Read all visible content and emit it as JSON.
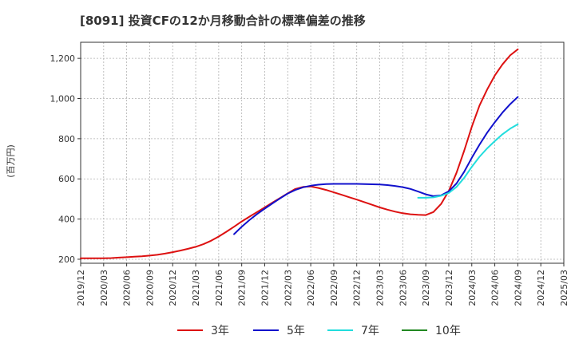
{
  "chart_data": {
    "type": "line",
    "title": "[8091]  投資CFの12か月移動合計の標準偏差の推移",
    "ylabel": "(百万円)",
    "xlabel": "",
    "ylim": [
      180,
      1280
    ],
    "yticks": [
      200,
      400,
      600,
      800,
      1000,
      1200
    ],
    "ytick_labels": [
      "200",
      "400",
      "600",
      "800",
      "1,000",
      "1,200"
    ],
    "xlim": [
      "2019-12",
      "2025-03"
    ],
    "xticks": [
      "2019/12",
      "2020/03",
      "2020/06",
      "2020/09",
      "2020/12",
      "2021/03",
      "2021/06",
      "2021/09",
      "2021/12",
      "2022/03",
      "2022/06",
      "2022/09",
      "2022/12",
      "2023/03",
      "2023/06",
      "2023/09",
      "2023/12",
      "2024/03",
      "2024/06",
      "2024/09",
      "2024/12",
      "2025/03"
    ],
    "grid": true,
    "legend_position": "bottom",
    "series": [
      {
        "name": "3年",
        "color": "#dd1111",
        "points": [
          [
            "2019-12",
            205
          ],
          [
            "2020-01",
            205
          ],
          [
            "2020-02",
            205
          ],
          [
            "2020-03",
            205
          ],
          [
            "2020-04",
            206
          ],
          [
            "2020-05",
            208
          ],
          [
            "2020-06",
            210
          ],
          [
            "2020-07",
            213
          ],
          [
            "2020-08",
            215
          ],
          [
            "2020-09",
            218
          ],
          [
            "2020-10",
            222
          ],
          [
            "2020-11",
            228
          ],
          [
            "2020-12",
            235
          ],
          [
            "2021-01",
            243
          ],
          [
            "2021-02",
            252
          ],
          [
            "2021-03",
            262
          ],
          [
            "2021-04",
            275
          ],
          [
            "2021-05",
            292
          ],
          [
            "2021-06",
            313
          ],
          [
            "2021-07",
            337
          ],
          [
            "2021-08",
            362
          ],
          [
            "2021-09",
            388
          ],
          [
            "2021-10",
            412
          ],
          [
            "2021-11",
            435
          ],
          [
            "2021-12",
            458
          ],
          [
            "2022-01",
            482
          ],
          [
            "2022-02",
            505
          ],
          [
            "2022-03",
            528
          ],
          [
            "2022-04",
            550
          ],
          [
            "2022-05",
            560
          ],
          [
            "2022-06",
            562
          ],
          [
            "2022-07",
            555
          ],
          [
            "2022-08",
            545
          ],
          [
            "2022-09",
            533
          ],
          [
            "2022-10",
            521
          ],
          [
            "2022-11",
            509
          ],
          [
            "2022-12",
            497
          ],
          [
            "2023-01",
            484
          ],
          [
            "2023-02",
            471
          ],
          [
            "2023-03",
            458
          ],
          [
            "2023-04",
            447
          ],
          [
            "2023-05",
            437
          ],
          [
            "2023-06",
            429
          ],
          [
            "2023-07",
            424
          ],
          [
            "2023-08",
            421
          ],
          [
            "2023-09",
            420
          ],
          [
            "2023-10",
            435
          ],
          [
            "2023-11",
            475
          ],
          [
            "2023-12",
            540
          ],
          [
            "2024-01",
            630
          ],
          [
            "2024-02",
            740
          ],
          [
            "2024-03",
            860
          ],
          [
            "2024-04",
            965
          ],
          [
            "2024-05",
            1045
          ],
          [
            "2024-06",
            1115
          ],
          [
            "2024-07",
            1170
          ],
          [
            "2024-08",
            1215
          ],
          [
            "2024-09",
            1245
          ]
        ]
      },
      {
        "name": "5年",
        "color": "#1111cc",
        "points": [
          [
            "2021-08",
            325
          ],
          [
            "2021-09",
            362
          ],
          [
            "2021-10",
            395
          ],
          [
            "2021-11",
            425
          ],
          [
            "2021-12",
            452
          ],
          [
            "2022-01",
            478
          ],
          [
            "2022-02",
            503
          ],
          [
            "2022-03",
            527
          ],
          [
            "2022-04",
            545
          ],
          [
            "2022-05",
            558
          ],
          [
            "2022-06",
            566
          ],
          [
            "2022-07",
            571
          ],
          [
            "2022-08",
            574
          ],
          [
            "2022-09",
            575
          ],
          [
            "2022-10",
            575
          ],
          [
            "2022-11",
            575
          ],
          [
            "2022-12",
            575
          ],
          [
            "2023-01",
            574
          ],
          [
            "2023-02",
            573
          ],
          [
            "2023-03",
            572
          ],
          [
            "2023-04",
            569
          ],
          [
            "2023-05",
            565
          ],
          [
            "2023-06",
            559
          ],
          [
            "2023-07",
            550
          ],
          [
            "2023-08",
            537
          ],
          [
            "2023-09",
            523
          ],
          [
            "2023-10",
            514
          ],
          [
            "2023-11",
            518
          ],
          [
            "2023-12",
            538
          ],
          [
            "2024-01",
            577
          ],
          [
            "2024-02",
            635
          ],
          [
            "2024-03",
            705
          ],
          [
            "2024-04",
            770
          ],
          [
            "2024-05",
            830
          ],
          [
            "2024-06",
            882
          ],
          [
            "2024-07",
            930
          ],
          [
            "2024-08",
            972
          ],
          [
            "2024-09",
            1008
          ]
        ]
      },
      {
        "name": "7年",
        "color": "#22dddd",
        "points": [
          [
            "2023-08",
            506
          ],
          [
            "2023-09",
            506
          ],
          [
            "2023-10",
            508
          ],
          [
            "2023-11",
            516
          ],
          [
            "2023-12",
            530
          ],
          [
            "2024-01",
            560
          ],
          [
            "2024-02",
            605
          ],
          [
            "2024-03",
            660
          ],
          [
            "2024-04",
            710
          ],
          [
            "2024-05",
            752
          ],
          [
            "2024-06",
            788
          ],
          [
            "2024-07",
            822
          ],
          [
            "2024-08",
            850
          ],
          [
            "2024-09",
            872
          ]
        ]
      },
      {
        "name": "10年",
        "color": "#228822",
        "points": []
      }
    ]
  }
}
